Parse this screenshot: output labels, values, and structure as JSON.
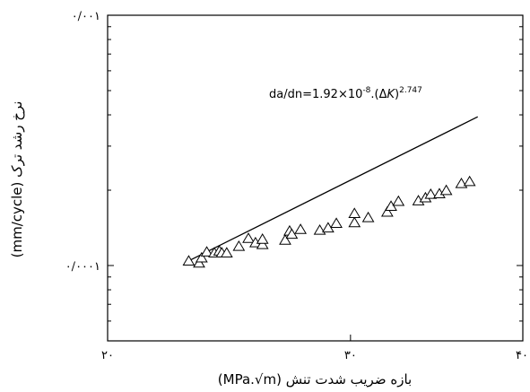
{
  "chart_data": {
    "type": "scatter",
    "xlabel": "بازه ضریب شدت تنش (MPa.√m)",
    "ylabel": "نرخ رشد ترک (mm/cycle)",
    "x_scale": "log",
    "y_scale": "log",
    "xlim": [
      20,
      40
    ],
    "ylim": [
      5e-05,
      0.001
    ],
    "x_ticks": [
      {
        "value": 20,
        "label": "۲۰"
      },
      {
        "value": 30,
        "label": "۳۰"
      },
      {
        "value": 40,
        "label": "۴۰"
      }
    ],
    "y_ticks": [
      {
        "value": 0.0001,
        "label": "۰/۰۰۰۱"
      },
      {
        "value": 0.001,
        "label": "۰/۰۰۱"
      }
    ],
    "marker": "open-triangle",
    "series": [
      {
        "points": [
          {
            "x": 22.9,
            "y": 0.000104
          },
          {
            "x": 23.3,
            "y": 0.000102
          },
          {
            "x": 23.4,
            "y": 0.000107
          },
          {
            "x": 23.6,
            "y": 0.000113
          },
          {
            "x": 23.9,
            "y": 0.000112
          },
          {
            "x": 24.1,
            "y": 0.000114
          },
          {
            "x": 24.2,
            "y": 0.000112
          },
          {
            "x": 24.4,
            "y": 0.000112
          },
          {
            "x": 24.9,
            "y": 0.000119
          },
          {
            "x": 25.3,
            "y": 0.000128
          },
          {
            "x": 25.6,
            "y": 0.000123
          },
          {
            "x": 25.9,
            "y": 0.000121
          },
          {
            "x": 25.9,
            "y": 0.000127
          },
          {
            "x": 26.9,
            "y": 0.000126
          },
          {
            "x": 27.1,
            "y": 0.000137
          },
          {
            "x": 27.2,
            "y": 0.000133
          },
          {
            "x": 27.6,
            "y": 0.000139
          },
          {
            "x": 28.5,
            "y": 0.000138
          },
          {
            "x": 28.9,
            "y": 0.000141
          },
          {
            "x": 29.3,
            "y": 0.000147
          },
          {
            "x": 30.2,
            "y": 0.000148
          },
          {
            "x": 30.2,
            "y": 0.000161
          },
          {
            "x": 30.9,
            "y": 0.000155
          },
          {
            "x": 31.9,
            "y": 0.000163
          },
          {
            "x": 32.1,
            "y": 0.000172
          },
          {
            "x": 32.5,
            "y": 0.00018
          },
          {
            "x": 33.6,
            "y": 0.000181
          },
          {
            "x": 34.0,
            "y": 0.000186
          },
          {
            "x": 34.3,
            "y": 0.000192
          },
          {
            "x": 34.8,
            "y": 0.000193
          },
          {
            "x": 35.2,
            "y": 0.000199
          },
          {
            "x": 36.1,
            "y": 0.000212
          },
          {
            "x": 36.6,
            "y": 0.000216
          }
        ]
      }
    ],
    "fit_line": {
      "x_start": 22.9,
      "x_end": 37.1,
      "coefficient": 1.92e-08,
      "exponent": 2.747
    },
    "annotation": {
      "da": "da",
      "slash": "/",
      "dn": "dn",
      "eq_coeff": "=1.92×10",
      "coeff_exp": "-8",
      "dot_open": ".(",
      "delta": "Δ",
      "k": "K",
      "close": ")",
      "exp": "2.747"
    },
    "grid": false,
    "legend": "none"
  }
}
